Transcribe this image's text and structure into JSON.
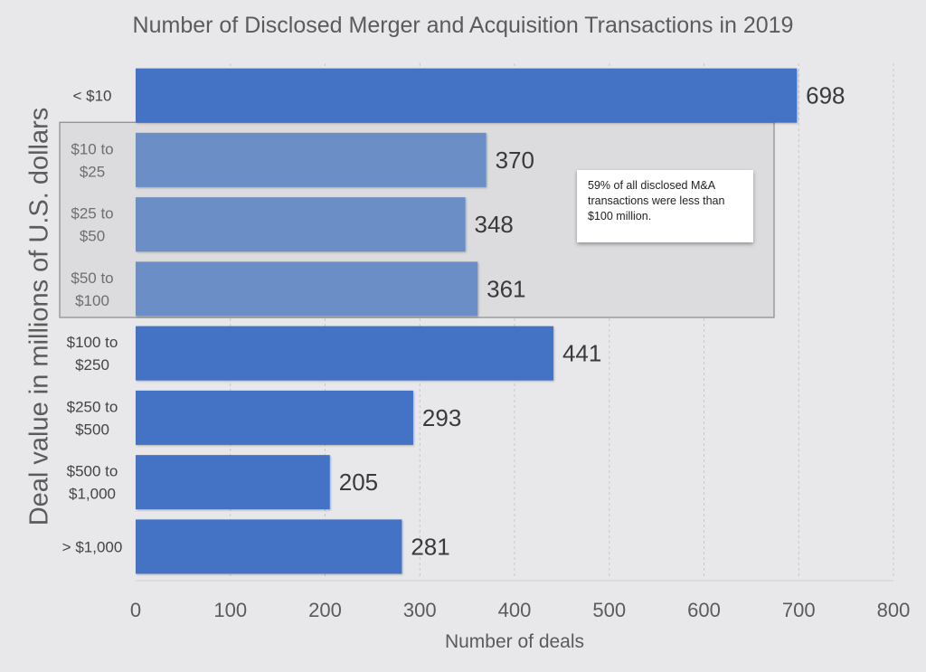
{
  "chart_data": {
    "type": "bar",
    "orientation": "horizontal",
    "title": "Number of Disclosed Merger and Acquisition Transactions in 2019",
    "xlabel": "Number of deals",
    "ylabel": "Deal value in millions of U.S. dollars",
    "categories": [
      [
        "< $10"
      ],
      [
        "$10 to",
        "$25"
      ],
      [
        "$25 to",
        "$50"
      ],
      [
        "$50 to",
        "$100"
      ],
      [
        "$100 to",
        "$250"
      ],
      [
        "$250 to",
        "$500"
      ],
      [
        "$500 to",
        "$1,000"
      ],
      [
        "> $1,000"
      ]
    ],
    "values": [
      698,
      370,
      348,
      361,
      441,
      293,
      205,
      281
    ],
    "xlim": [
      0,
      800
    ],
    "xticks": [
      0,
      100,
      200,
      300,
      400,
      500,
      600,
      700,
      800
    ],
    "grid": "vertical dashed",
    "highlighted_categories": [
      1,
      2,
      3
    ],
    "annotation": "59% of all disclosed M&A transactions were less than $100 million.",
    "colors": {
      "bar": "#4472c4",
      "highlight_bar": "#6b8ec6",
      "highlight_box": "#dcdcdf",
      "text": "#5b5b5b",
      "value_label": "#3a3a3a",
      "grid": "#c8c8c8"
    }
  }
}
